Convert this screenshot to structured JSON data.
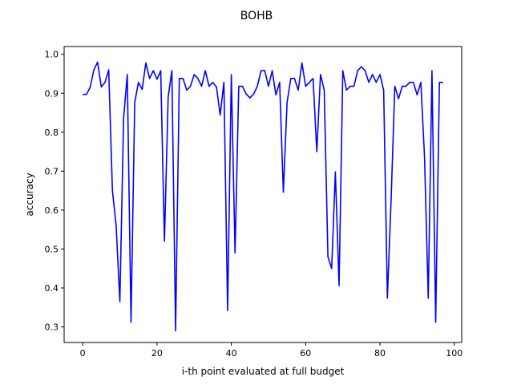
{
  "chart_data": {
    "type": "line",
    "title": "BOHB",
    "xlabel": "i-th point evaluated at full budget",
    "ylabel": "accuracy",
    "xlim": [
      -5,
      102
    ],
    "ylim": [
      0.26,
      1.02
    ],
    "xticks": [
      "0",
      "20",
      "40",
      "60",
      "80",
      "100"
    ],
    "yticks": [
      "0.3",
      "0.4",
      "0.5",
      "0.6",
      "0.7",
      "0.8",
      "0.9",
      "1.0"
    ],
    "grid": false,
    "series": [
      {
        "color": "#0000ff",
        "values": [
          0.897,
          0.897,
          0.915,
          0.96,
          0.98,
          0.916,
          0.928,
          0.96,
          0.65,
          0.56,
          0.365,
          0.835,
          0.948,
          0.312,
          0.876,
          0.928,
          0.91,
          0.978,
          0.938,
          0.958,
          0.936,
          0.958,
          0.52,
          0.89,
          0.958,
          0.29,
          0.938,
          0.938,
          0.908,
          0.918,
          0.948,
          0.938,
          0.918,
          0.958,
          0.918,
          0.928,
          0.916,
          0.844,
          0.928,
          0.342,
          0.948,
          0.49,
          0.918,
          0.918,
          0.898,
          0.888,
          0.898,
          0.918,
          0.958,
          0.958,
          0.918,
          0.958,
          0.896,
          0.928,
          0.646,
          0.876,
          0.938,
          0.938,
          0.908,
          0.978,
          0.918,
          0.928,
          0.938,
          0.75,
          0.948,
          0.908,
          0.48,
          0.45,
          0.698,
          0.406,
          0.958,
          0.908,
          0.918,
          0.918,
          0.958,
          0.968,
          0.958,
          0.928,
          0.948,
          0.928,
          0.948,
          0.908,
          0.374,
          0.626,
          0.918,
          0.886,
          0.918,
          0.918,
          0.928,
          0.928,
          0.896,
          0.928,
          0.736,
          0.374,
          0.958,
          0.312,
          0.928,
          0.928
        ]
      }
    ]
  }
}
